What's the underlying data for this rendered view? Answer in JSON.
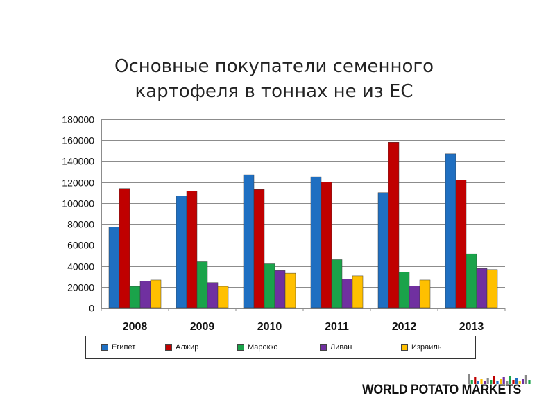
{
  "chart_data": {
    "type": "bar",
    "title_lines": [
      "Основные покупатели семенного",
      "картофеля в тоннах не из ЕС"
    ],
    "categories": [
      "2008",
      "2009",
      "2010",
      "2011",
      "2012",
      "2013"
    ],
    "ylim": [
      0,
      180000
    ],
    "yticks": [
      "0",
      "20000",
      "40000",
      "60000",
      "80000",
      "100000",
      "120000",
      "140000",
      "160000",
      "180000"
    ],
    "grid": true,
    "legend_position": "bottom",
    "series": [
      {
        "name": "Египет",
        "color": "#1f6fc1",
        "values": [
          77000,
          107000,
          127000,
          125000,
          110000,
          147000
        ]
      },
      {
        "name": "Алжир",
        "color": "#c00000",
        "values": [
          114000,
          111500,
          113000,
          120000,
          158000,
          122000
        ]
      },
      {
        "name": "Марокко",
        "color": "#1aa34a",
        "values": [
          20500,
          44000,
          42000,
          46000,
          34000,
          51500
        ]
      },
      {
        "name": "Ливан",
        "color": "#7030a0",
        "values": [
          25500,
          24000,
          35500,
          27500,
          21000,
          37500
        ]
      },
      {
        "name": "Израиль",
        "color": "#ffc000",
        "values": [
          26500,
          20500,
          33000,
          30500,
          26500,
          36500
        ]
      }
    ]
  },
  "logo": {
    "text": "WORLD POTATO MARKETS",
    "bar_colors": [
      "#888888",
      "#1aa34a",
      "#c00000",
      "#1f6fc1",
      "#ffc000",
      "#7030a0"
    ]
  }
}
